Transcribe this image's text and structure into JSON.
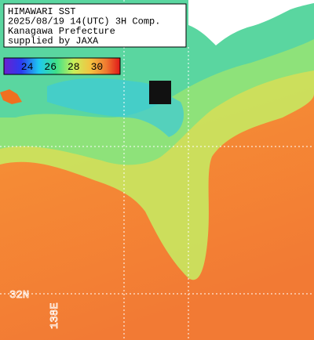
{
  "map": {
    "title_lines": [
      "HIMAWARI SST",
      "2025/08/19 14(UTC) 3H Comp.",
      "Kanagawa Prefecture",
      "supplied by JAXA"
    ],
    "colorbar": {
      "range": [
        22,
        32
      ],
      "ticks": [
        24,
        26,
        28,
        30
      ]
    },
    "lat_labels": [
      "32N"
    ],
    "lon_labels": [
      "138E"
    ]
  }
}
